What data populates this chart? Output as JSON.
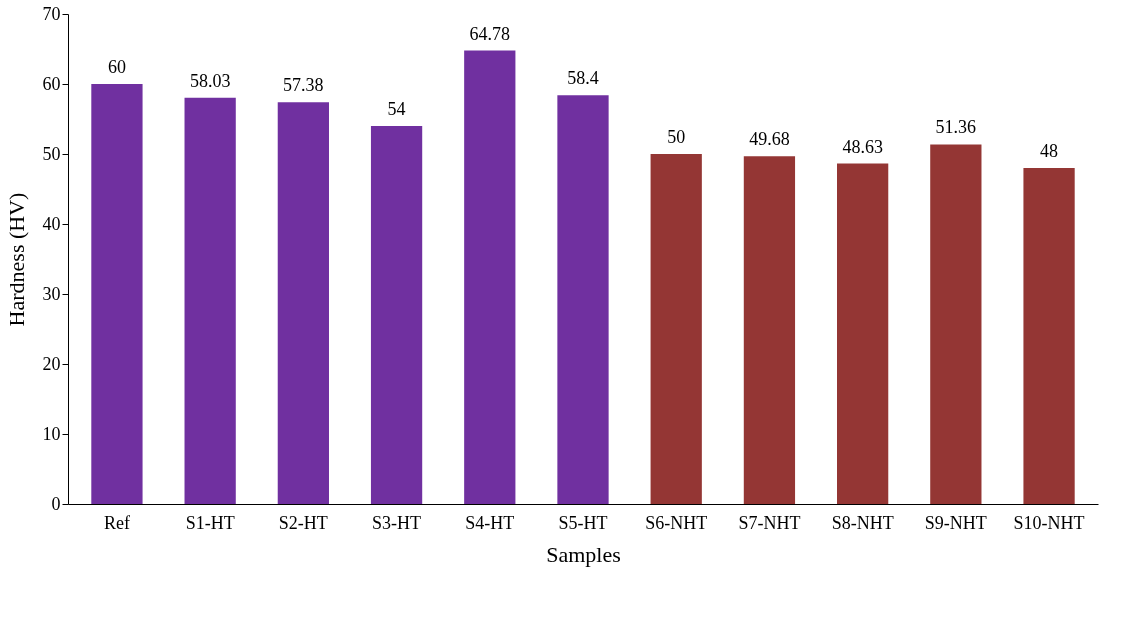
{
  "chart_data": {
    "type": "bar",
    "xlabel": "Samples",
    "ylabel": "Hardness (HV)",
    "categories": [
      "Ref",
      "S1-HT",
      "S2-HT",
      "S3-HT",
      "S4-HT",
      "S5-HT",
      "S6-NHT",
      "S7-NHT",
      "S8-NHT",
      "S9-NHT",
      "S10-NHT"
    ],
    "values": [
      60,
      58.03,
      57.38,
      54,
      64.78,
      58.4,
      50,
      49.68,
      48.63,
      51.36,
      48
    ],
    "colors": [
      "#7030a0",
      "#7030a0",
      "#7030a0",
      "#7030a0",
      "#7030a0",
      "#7030a0",
      "#943634",
      "#943634",
      "#943634",
      "#943634",
      "#943634"
    ],
    "ylim": [
      0,
      70
    ],
    "yticks": [
      0,
      10,
      20,
      30,
      40,
      50,
      60,
      70
    ],
    "grid": false,
    "data_labels": true
  }
}
